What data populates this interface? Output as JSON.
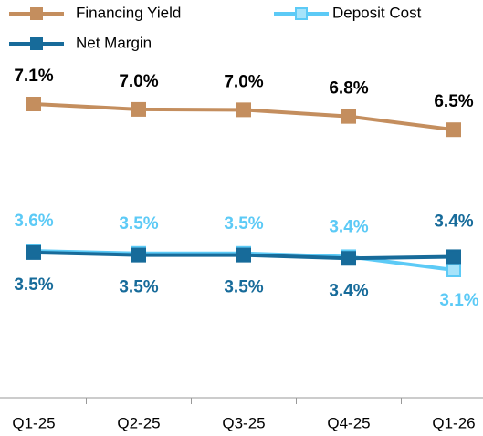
{
  "chart_data": {
    "type": "line",
    "categories": [
      "Q1-25",
      "Q2-25",
      "Q3-25",
      "Q4-25",
      "Q1-26"
    ],
    "series": [
      {
        "name": "Financing Yield",
        "color": "#c48e5e",
        "values": [
          7.12,
          6.99,
          6.98,
          6.82,
          6.5
        ],
        "value_labels": [
          "7.1%",
          "7.0%",
          "7.0%",
          "6.8%",
          "6.5%"
        ]
      },
      {
        "name": "Deposit Cost",
        "color": "#5ccaf6",
        "values": [
          3.58,
          3.52,
          3.52,
          3.44,
          3.12
        ],
        "value_labels": [
          "3.6%",
          "3.5%",
          "3.5%",
          "3.4%",
          "3.1%"
        ]
      },
      {
        "name": "Net Margin",
        "color": "#176b9a",
        "values": [
          3.54,
          3.48,
          3.48,
          3.4,
          3.44
        ],
        "value_labels": [
          "3.5%",
          "3.5%",
          "3.5%",
          "3.4%",
          "3.4%"
        ]
      }
    ]
  }
}
